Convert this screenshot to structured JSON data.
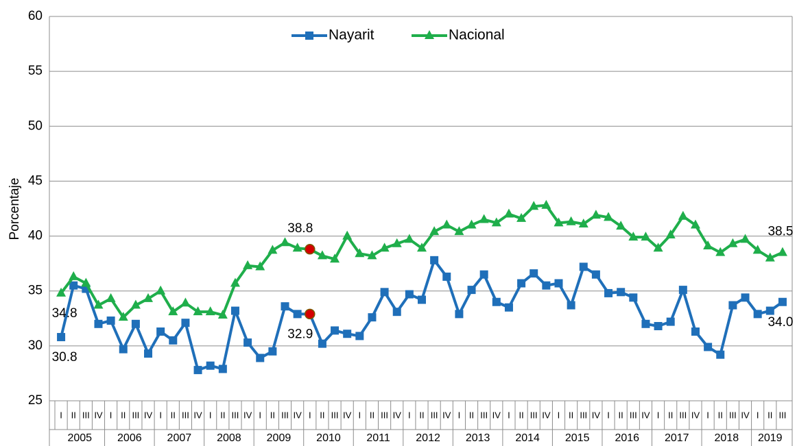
{
  "chart_data": {
    "type": "line",
    "y_label": "Porcentaje",
    "categories": [
      "I",
      "II",
      "III",
      "IV",
      "I",
      "II",
      "III",
      "IV",
      "I",
      "II",
      "III",
      "IV",
      "I",
      "II",
      "III",
      "IV",
      "I",
      "II",
      "III",
      "IV",
      "I",
      "II",
      "III",
      "IV",
      "I",
      "II",
      "III",
      "IV",
      "I",
      "II",
      "III",
      "IV",
      "I",
      "II",
      "III",
      "IV",
      "I",
      "II",
      "III",
      "IV",
      "I",
      "II",
      "III",
      "IV",
      "I",
      "II",
      "III",
      "IV",
      "I",
      "II",
      "III",
      "IV",
      "I",
      "II",
      "III",
      "IV",
      "I",
      "II",
      "III"
    ],
    "years": [
      "2005",
      "2006",
      "2007",
      "2008",
      "2009",
      "2010",
      "2011",
      "2012",
      "2013",
      "2014",
      "2015",
      "2016",
      "2017",
      "2018",
      "2019"
    ],
    "series": [
      {
        "name": "Nayarit",
        "color": "#1f6fb9",
        "marker": "square",
        "values": [
          30.8,
          35.5,
          35.2,
          32.0,
          32.3,
          29.7,
          32.0,
          29.3,
          31.3,
          30.5,
          32.1,
          27.8,
          28.2,
          27.9,
          33.2,
          30.3,
          28.9,
          29.5,
          33.6,
          32.9,
          32.9,
          30.2,
          31.4,
          31.1,
          30.9,
          32.6,
          34.9,
          33.1,
          34.7,
          34.2,
          37.8,
          36.3,
          32.9,
          35.1,
          36.5,
          34.0,
          33.5,
          35.7,
          36.6,
          35.5,
          35.7,
          33.7,
          37.2,
          36.5,
          34.8,
          34.9,
          34.4,
          32.0,
          31.8,
          32.2,
          35.1,
          31.3,
          29.9,
          29.2,
          33.7,
          34.4,
          32.9,
          33.2,
          34.0
        ],
        "value_labels": [
          "30.8",
          null,
          null,
          null,
          null,
          null,
          null,
          null,
          null,
          null,
          null,
          null,
          null,
          null,
          null,
          null,
          null,
          null,
          null,
          null,
          "32.9",
          null,
          null,
          null,
          null,
          null,
          null,
          null,
          null,
          null,
          null,
          null,
          null,
          null,
          null,
          null,
          null,
          null,
          null,
          null,
          null,
          null,
          null,
          null,
          null,
          null,
          null,
          null,
          null,
          null,
          null,
          null,
          null,
          null,
          null,
          null,
          null,
          null,
          "34.0"
        ]
      },
      {
        "name": "Nacional",
        "color": "#1fae4b",
        "marker": "triangle",
        "values": [
          34.8,
          36.3,
          35.7,
          33.7,
          34.3,
          32.6,
          33.7,
          34.3,
          35.0,
          33.1,
          33.9,
          33.1,
          33.1,
          32.8,
          35.7,
          37.3,
          37.2,
          38.7,
          39.4,
          38.9,
          38.8,
          38.2,
          37.9,
          40.0,
          38.4,
          38.2,
          38.9,
          39.3,
          39.7,
          38.9,
          40.4,
          41.0,
          40.4,
          41.0,
          41.5,
          41.2,
          42.0,
          41.6,
          42.7,
          42.8,
          41.2,
          41.3,
          41.1,
          41.9,
          41.7,
          40.9,
          39.9,
          39.9,
          38.9,
          40.1,
          41.8,
          41.0,
          39.1,
          38.5,
          39.3,
          39.7,
          38.7,
          38.0,
          38.5
        ],
        "value_labels": [
          "34.8",
          null,
          null,
          null,
          null,
          null,
          null,
          null,
          null,
          null,
          null,
          null,
          null,
          null,
          null,
          null,
          null,
          null,
          null,
          null,
          "38.8",
          null,
          null,
          null,
          null,
          null,
          null,
          null,
          null,
          null,
          null,
          null,
          null,
          null,
          null,
          null,
          null,
          null,
          null,
          null,
          null,
          null,
          null,
          null,
          null,
          null,
          null,
          null,
          null,
          null,
          null,
          null,
          null,
          null,
          null,
          null,
          null,
          null,
          "38.5"
        ]
      }
    ],
    "highlight": {
      "index": 20,
      "color": "#d40000"
    },
    "ylim": [
      25,
      60
    ],
    "yticks": [
      25,
      30,
      35,
      40,
      45,
      50,
      55,
      60
    ],
    "grid": true,
    "legend": "top"
  }
}
